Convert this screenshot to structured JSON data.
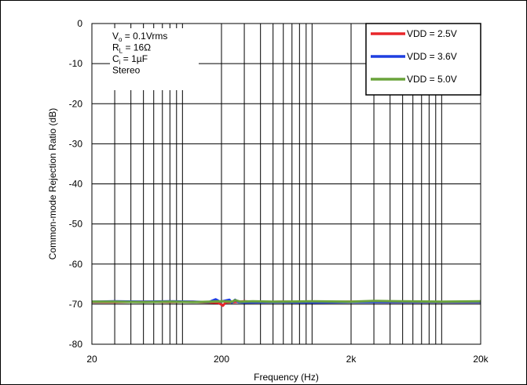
{
  "chart_data": {
    "type": "line",
    "xlabel": "Frequency (Hz)",
    "ylabel": "Common-mode Rejection Ratio (dB)",
    "x_scale": "log",
    "xlim": [
      20,
      20000
    ],
    "ylim": [
      -80,
      0
    ],
    "grid": true,
    "x_ticks": [
      {
        "value": 20,
        "label": "20"
      },
      {
        "value": 200,
        "label": "200"
      },
      {
        "value": 2000,
        "label": "2k"
      },
      {
        "value": 20000,
        "label": "20k"
      }
    ],
    "y_ticks": [
      {
        "value": 0,
        "label": "0"
      },
      {
        "value": -10,
        "label": "-10"
      },
      {
        "value": -20,
        "label": "-20"
      },
      {
        "value": -30,
        "label": "-30"
      },
      {
        "value": -40,
        "label": "-40"
      },
      {
        "value": -50,
        "label": "-50"
      },
      {
        "value": -60,
        "label": "-60"
      },
      {
        "value": -70,
        "label": "-70"
      },
      {
        "value": -80,
        "label": "-80"
      }
    ],
    "legend_position": "top-right",
    "series": [
      {
        "name": "VDD = 2.5V",
        "color": "#e8262a",
        "x": [
          20,
          30,
          50,
          80,
          120,
          160,
          190,
          205,
          215,
          250,
          300,
          400,
          600,
          1000,
          2000,
          4000,
          8000,
          20000
        ],
        "y": [
          -69.5,
          -69.5,
          -69.4,
          -69.5,
          -69.4,
          -69.6,
          -69.7,
          -70.4,
          -69.6,
          -69.5,
          -69.3,
          -69.5,
          -69.4,
          -69.5,
          -69.4,
          -69.5,
          -69.5,
          -69.5
        ]
      },
      {
        "name": "VDD = 3.6V",
        "color": "#1f3fe0",
        "x": [
          20,
          30,
          50,
          80,
          120,
          160,
          180,
          195,
          230,
          240,
          255,
          270,
          300,
          500,
          1000,
          2000,
          5000,
          20000
        ],
        "y": [
          -69.4,
          -69.3,
          -69.4,
          -69.3,
          -69.4,
          -69.5,
          -68.8,
          -69.4,
          -68.9,
          -69.6,
          -68.9,
          -69.5,
          -69.6,
          -69.5,
          -69.6,
          -69.5,
          -69.5,
          -69.5
        ]
      },
      {
        "name": "VDD = 5.0V",
        "color": "#6aa33b",
        "x": [
          20,
          30,
          50,
          80,
          120,
          160,
          200,
          240,
          255,
          280,
          350,
          500,
          1000,
          2000,
          3000,
          5000,
          10000,
          20000
        ],
        "y": [
          -69.4,
          -69.4,
          -69.5,
          -69.4,
          -69.5,
          -69.4,
          -69.3,
          -69.4,
          -69.0,
          -69.4,
          -69.3,
          -69.4,
          -69.3,
          -69.4,
          -69.2,
          -69.3,
          -69.4,
          -69.3
        ]
      }
    ],
    "annotation_lines": [
      {
        "main": "V",
        "sub": "o",
        "rest": " = 0.1Vrms"
      },
      {
        "main": "R",
        "sub": "L",
        "rest": " = 16Ω"
      },
      {
        "main": "C",
        "sub": "i",
        "rest": " = 1µF"
      },
      {
        "main": "Stereo",
        "sub": "",
        "rest": ""
      }
    ]
  }
}
